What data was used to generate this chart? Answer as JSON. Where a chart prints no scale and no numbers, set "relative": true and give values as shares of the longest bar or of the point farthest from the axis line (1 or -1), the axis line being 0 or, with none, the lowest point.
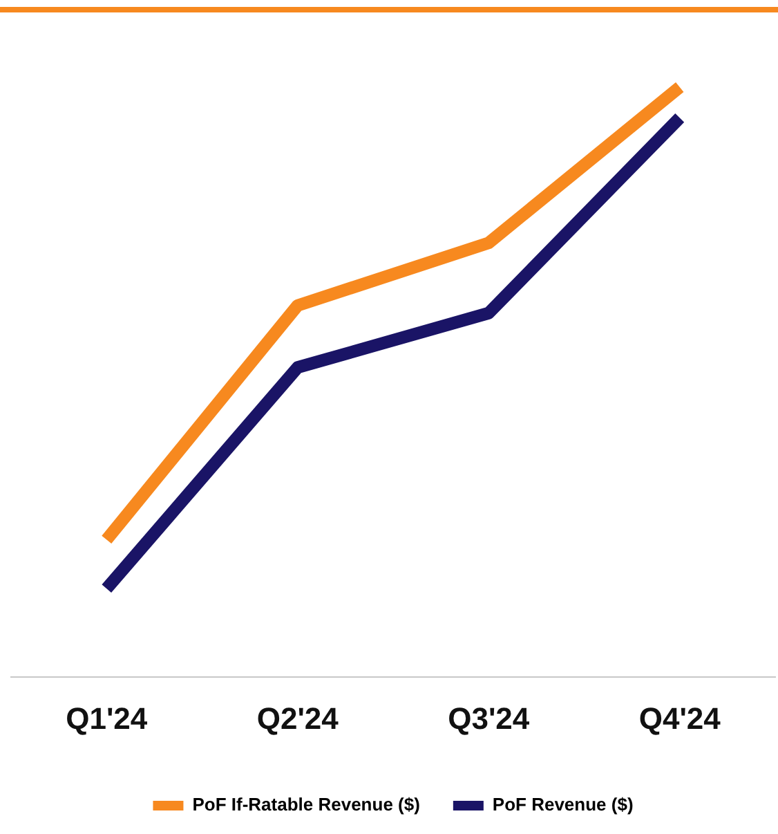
{
  "chart_data": {
    "type": "line",
    "relative": true,
    "categories": [
      "Q1'24",
      "Q2'24",
      "Q3'24",
      "Q4'24"
    ],
    "series": [
      {
        "name": "PoF If-Ratable Revenue ($)",
        "color": "#f7891f",
        "values": [
          0.233,
          0.63,
          0.736,
          1
        ]
      },
      {
        "name": "PoF Revenue ($)",
        "color": "#1a1466",
        "values": [
          0.15,
          0.525,
          0.617,
          0.948
        ]
      }
    ],
    "grid": false,
    "legend": "bottom",
    "marker": "none"
  }
}
